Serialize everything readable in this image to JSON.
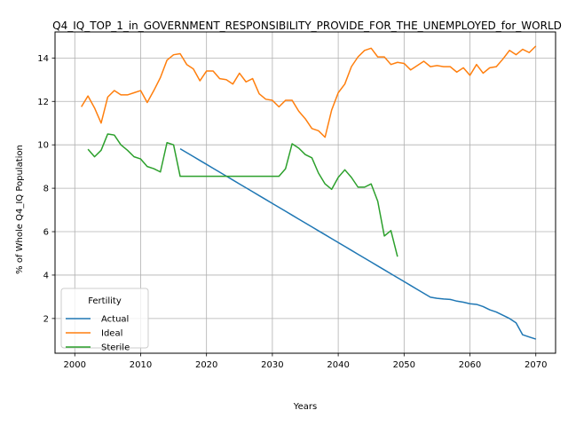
{
  "chart_data": {
    "type": "line",
    "title": "Q4_IQ_TOP_1_in_GOVERNMENT_RESPONSIBILITY_PROVIDE_FOR_THE_UNEMPLOYED_for_WORLD",
    "xlabel": "Years",
    "ylabel": "% of Whole Q4_IQ Population",
    "xlim": [
      1997,
      2073
    ],
    "ylim": [
      0.4,
      15.2
    ],
    "xticks": [
      2000,
      2010,
      2020,
      2030,
      2040,
      2050,
      2060,
      2070
    ],
    "yticks": [
      2,
      4,
      6,
      8,
      10,
      12,
      14
    ],
    "grid": true,
    "legend": {
      "title": "Fertility",
      "position": "lower-left"
    },
    "series": [
      {
        "name": "Actual",
        "color": "#1f77b4",
        "x": [
          2016,
          2017,
          2018,
          2019,
          2020,
          2021,
          2022,
          2023,
          2024,
          2025,
          2026,
          2027,
          2028,
          2029,
          2030,
          2031,
          2032,
          2033,
          2034,
          2035,
          2036,
          2037,
          2038,
          2039,
          2040,
          2041,
          2042,
          2043,
          2044,
          2045,
          2046,
          2047,
          2048,
          2049,
          2050,
          2051,
          2052,
          2053,
          2054,
          2055,
          2056,
          2057,
          2058,
          2059,
          2060,
          2061,
          2062,
          2063,
          2064,
          2065,
          2066,
          2067,
          2068,
          2069,
          2070
        ],
        "y": [
          9.82,
          9.64,
          9.46,
          9.28,
          9.1,
          8.92,
          8.74,
          8.56,
          8.38,
          8.2,
          8.02,
          7.84,
          7.66,
          7.48,
          7.3,
          7.12,
          6.94,
          6.76,
          6.58,
          6.4,
          6.22,
          6.04,
          5.86,
          5.68,
          5.5,
          5.32,
          5.14,
          4.96,
          4.78,
          4.6,
          4.42,
          4.24,
          4.06,
          3.88,
          3.7,
          3.52,
          3.34,
          3.16,
          2.98,
          2.93,
          2.9,
          2.88,
          2.8,
          2.75,
          2.68,
          2.65,
          2.55,
          2.4,
          2.3,
          2.15,
          2.0,
          1.8,
          1.25,
          1.15,
          1.05
        ]
      },
      {
        "name": "Ideal",
        "color": "#ff7f0e",
        "x": [
          2001,
          2002,
          2003,
          2004,
          2005,
          2006,
          2007,
          2008,
          2009,
          2010,
          2011,
          2012,
          2013,
          2014,
          2015,
          2016,
          2017,
          2018,
          2019,
          2020,
          2021,
          2022,
          2023,
          2024,
          2025,
          2026,
          2027,
          2028,
          2029,
          2030,
          2031,
          2032,
          2033,
          2034,
          2035,
          2036,
          2037,
          2038,
          2039,
          2040,
          2041,
          2042,
          2043,
          2044,
          2045,
          2046,
          2047,
          2048,
          2049,
          2050,
          2051,
          2052,
          2053,
          2054,
          2055,
          2056,
          2057,
          2058,
          2059,
          2060,
          2061,
          2062,
          2063,
          2064,
          2065,
          2066,
          2067,
          2068,
          2069,
          2070
        ],
        "y": [
          11.75,
          12.25,
          11.7,
          11.0,
          12.2,
          12.5,
          12.3,
          12.3,
          12.4,
          12.5,
          11.95,
          12.5,
          13.1,
          13.9,
          14.15,
          14.2,
          13.7,
          13.5,
          12.95,
          13.4,
          13.4,
          13.05,
          13.0,
          12.8,
          13.3,
          12.9,
          13.05,
          12.35,
          12.1,
          12.05,
          11.75,
          12.05,
          12.05,
          11.55,
          11.2,
          10.75,
          10.65,
          10.35,
          11.6,
          12.4,
          12.8,
          13.6,
          14.05,
          14.35,
          14.45,
          14.05,
          14.05,
          13.7,
          13.8,
          13.75,
          13.45,
          13.65,
          13.85,
          13.6,
          13.65,
          13.6,
          13.6,
          13.35,
          13.55,
          13.2,
          13.7,
          13.3,
          13.55,
          13.6,
          13.95,
          14.35,
          14.15,
          14.4,
          14.25,
          14.55
        ]
      },
      {
        "name": "Sterile",
        "color": "#2ca02c",
        "x": [
          2002,
          2003,
          2004,
          2005,
          2006,
          2007,
          2008,
          2009,
          2010,
          2011,
          2012,
          2013,
          2014,
          2015,
          2016,
          2017,
          2018,
          2019,
          2020,
          2021,
          2022,
          2023,
          2024,
          2025,
          2026,
          2027,
          2028,
          2029,
          2030,
          2031,
          2032,
          2033,
          2034,
          2035,
          2036,
          2037,
          2038,
          2039,
          2040,
          2041,
          2042,
          2043,
          2044,
          2045,
          2046,
          2047,
          2048,
          2049
        ],
        "y": [
          9.8,
          9.45,
          9.75,
          10.5,
          10.45,
          10.0,
          9.75,
          9.45,
          9.35,
          9.0,
          8.9,
          8.75,
          10.1,
          10.0,
          8.55,
          8.55,
          8.55,
          8.55,
          8.55,
          8.55,
          8.55,
          8.55,
          8.55,
          8.55,
          8.55,
          8.55,
          8.55,
          8.55,
          8.55,
          8.55,
          8.9,
          10.05,
          9.85,
          9.55,
          9.4,
          8.7,
          8.2,
          7.95,
          8.5,
          8.85,
          8.5,
          8.05,
          8.05,
          8.2,
          7.4,
          5.8,
          6.05,
          4.85
        ]
      }
    ]
  }
}
